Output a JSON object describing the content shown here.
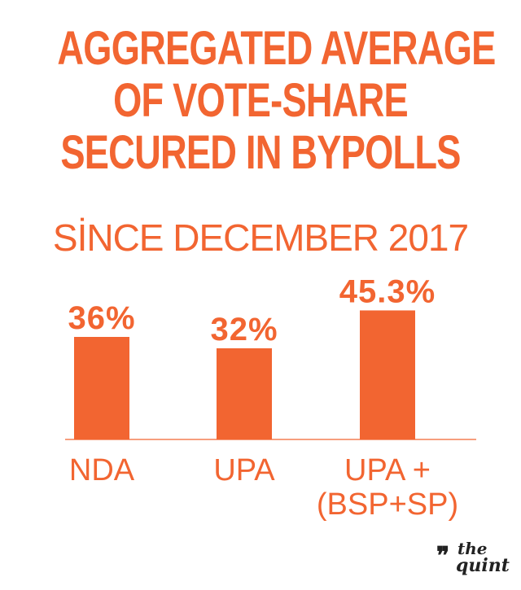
{
  "header": {
    "title_lines": [
      "AGGREGATED AVERAGE",
      "OF VOTE-SHARE",
      "SECURED IN BYPOLLS"
    ],
    "subtitle": "SİNCE DECEMBER 2017"
  },
  "colors": {
    "accent": "#f26531",
    "logo": "#222222"
  },
  "chart_data": {
    "type": "bar",
    "title": "AGGREGATED AVERAGE OF VOTE-SHARE SECURED IN BYPOLLS",
    "subtitle": "SİNCE DECEMBER 2017",
    "categories": [
      [
        "NDA"
      ],
      [
        "UPA"
      ],
      [
        "UPA +",
        "(BSP+SP)"
      ]
    ],
    "values": [
      36,
      32,
      45.3
    ],
    "value_labels": [
      "36%",
      "32%",
      "45.3%"
    ],
    "ylim": [
      0,
      60
    ],
    "grid": false,
    "legend": "none"
  },
  "logo": {
    "mark": "❞",
    "line1": "the",
    "line2": "quint"
  }
}
